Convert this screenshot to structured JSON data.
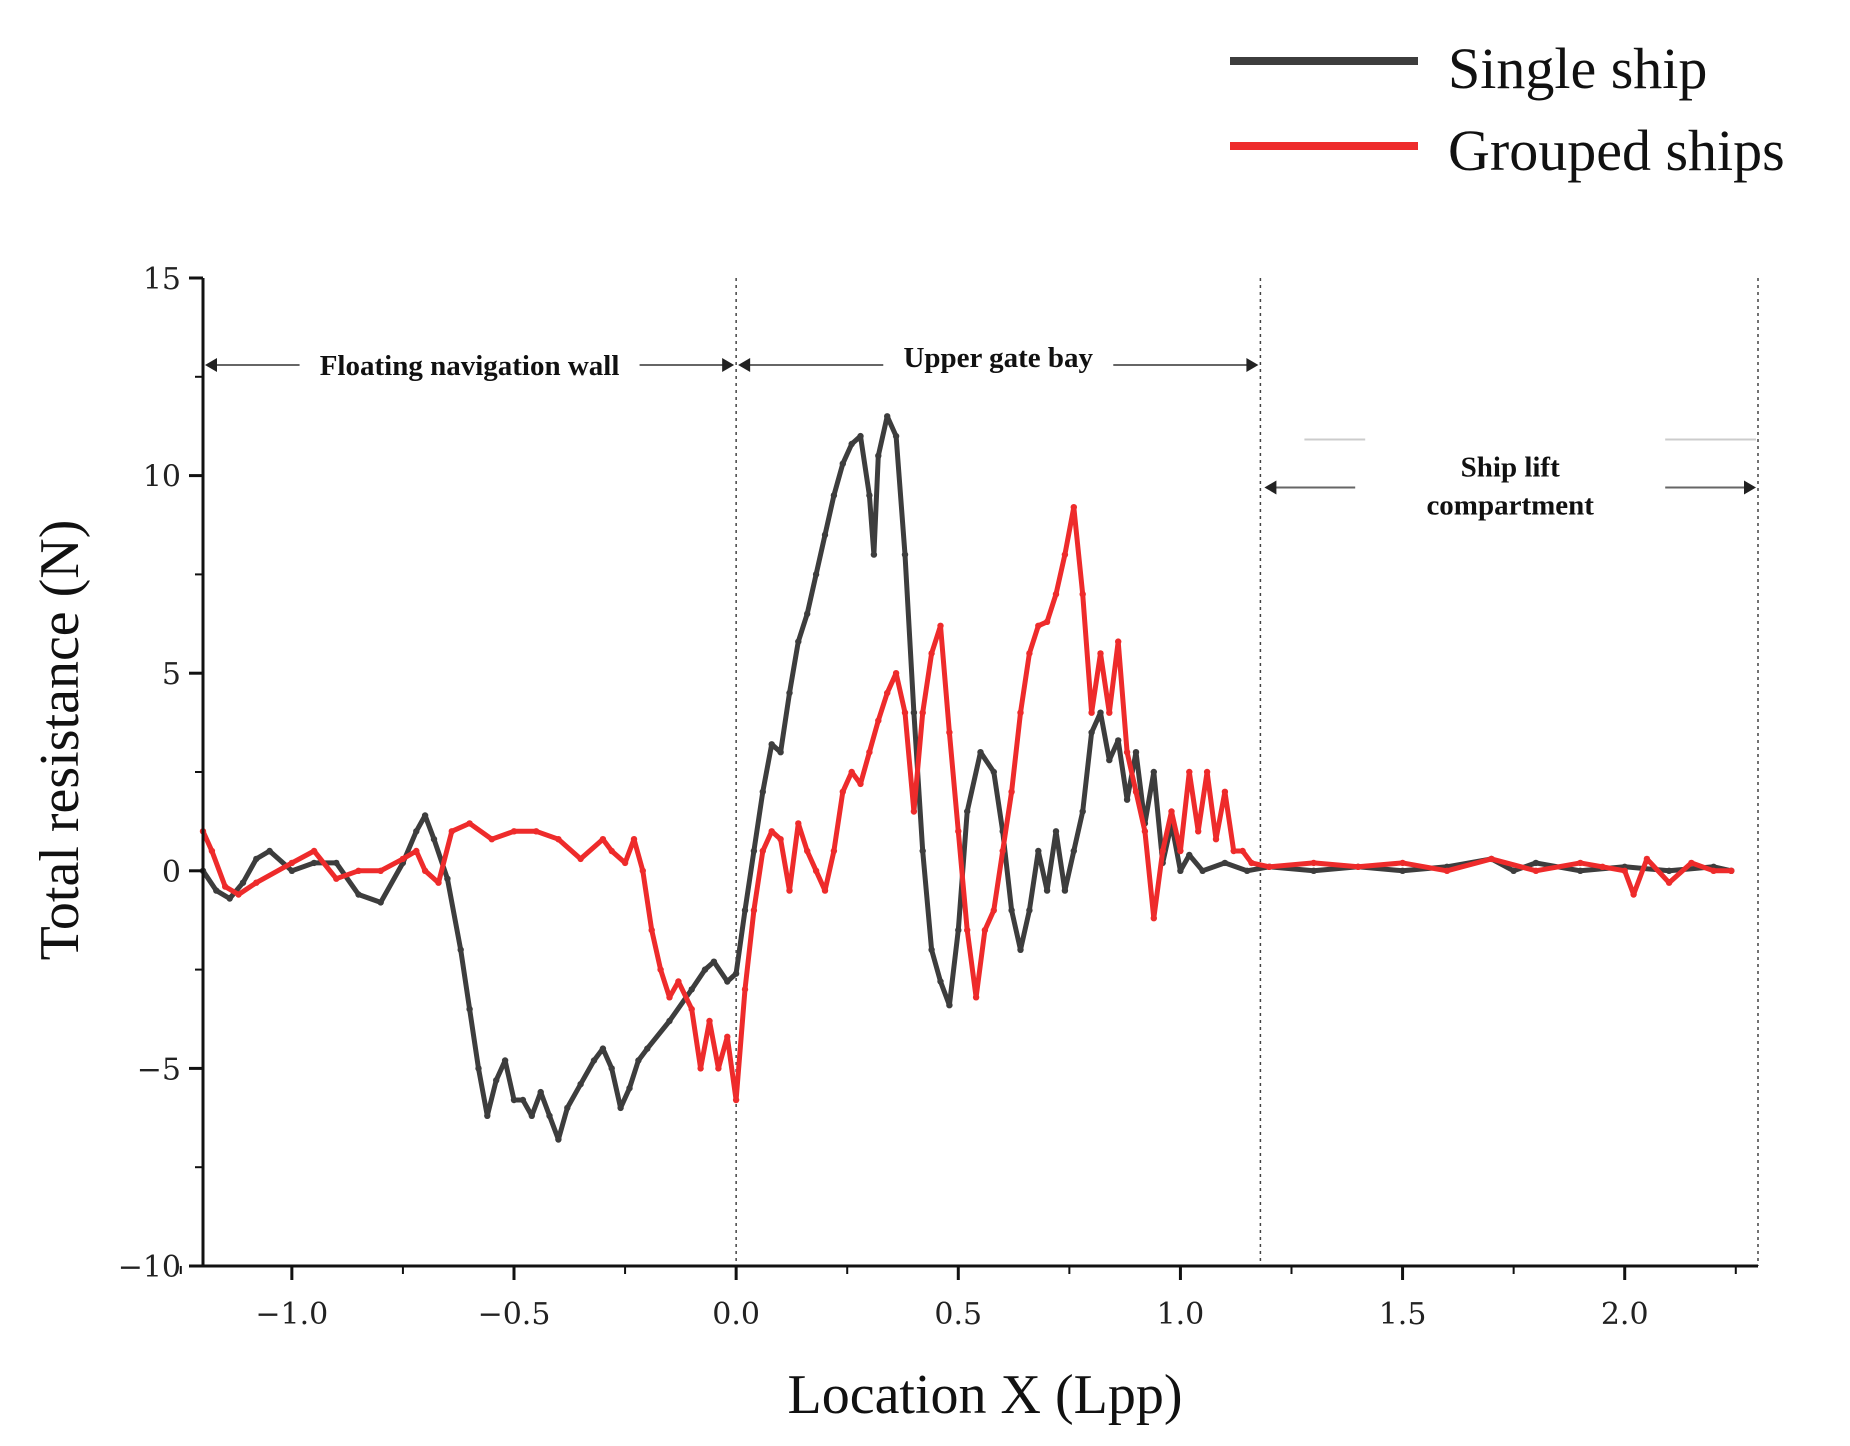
{
  "chart_data": {
    "type": "line",
    "title": "",
    "xlabel": "Location X (Lpp)",
    "ylabel": "Total resistance (N)",
    "xlim": [
      -1.2,
      2.3
    ],
    "ylim": [
      -10,
      15
    ],
    "xticks": [
      -1.0,
      -0.5,
      0.0,
      0.5,
      1.0,
      1.5,
      2.0
    ],
    "xtick_labels": [
      "−1.0",
      "−0.5",
      "0.0",
      "0.5",
      "1.0",
      "1.5",
      "2.0"
    ],
    "yticks": [
      -10,
      -5,
      0,
      5,
      10,
      15
    ],
    "ytick_labels": [
      "−10",
      "−5",
      "0",
      "5",
      "10",
      "15"
    ],
    "legend_position": "top-right",
    "region_boundaries": [
      0.0,
      1.18,
      2.3
    ],
    "regions": [
      {
        "label": "Floating navigation wall",
        "x_start": -1.2,
        "x_end": 0.0,
        "y": 12.8
      },
      {
        "label": "Upper gate bay",
        "x_start": 0.0,
        "x_end": 1.18,
        "y": 12.8
      },
      {
        "label_lines": [
          "Ship lift",
          "compartment"
        ],
        "x_start": 1.18,
        "x_end": 2.3,
        "y": 9.7
      }
    ],
    "series": [
      {
        "name": "Single ship",
        "color": "#3d3d3d",
        "x": [
          -1.2,
          -1.17,
          -1.14,
          -1.11,
          -1.08,
          -1.05,
          -1.0,
          -0.95,
          -0.9,
          -0.85,
          -0.8,
          -0.75,
          -0.72,
          -0.7,
          -0.68,
          -0.65,
          -0.62,
          -0.6,
          -0.58,
          -0.56,
          -0.54,
          -0.52,
          -0.5,
          -0.48,
          -0.46,
          -0.44,
          -0.42,
          -0.4,
          -0.38,
          -0.35,
          -0.32,
          -0.3,
          -0.28,
          -0.26,
          -0.24,
          -0.22,
          -0.2,
          -0.15,
          -0.1,
          -0.07,
          -0.05,
          -0.02,
          0.0,
          0.02,
          0.04,
          0.06,
          0.08,
          0.1,
          0.12,
          0.14,
          0.16,
          0.18,
          0.2,
          0.22,
          0.24,
          0.26,
          0.28,
          0.3,
          0.31,
          0.32,
          0.34,
          0.36,
          0.38,
          0.4,
          0.42,
          0.44,
          0.46,
          0.48,
          0.5,
          0.52,
          0.55,
          0.58,
          0.6,
          0.62,
          0.64,
          0.66,
          0.68,
          0.7,
          0.72,
          0.74,
          0.76,
          0.78,
          0.8,
          0.82,
          0.84,
          0.86,
          0.88,
          0.9,
          0.92,
          0.94,
          0.96,
          0.98,
          1.0,
          1.02,
          1.05,
          1.1,
          1.15,
          1.2,
          1.3,
          1.4,
          1.5,
          1.6,
          1.7,
          1.75,
          1.8,
          1.9,
          2.0,
          2.1,
          2.2,
          2.24
        ],
        "y": [
          0.0,
          -0.5,
          -0.7,
          -0.3,
          0.3,
          0.5,
          0.0,
          0.2,
          0.2,
          -0.6,
          -0.8,
          0.2,
          1.0,
          1.4,
          0.8,
          -0.2,
          -2.0,
          -3.5,
          -5.0,
          -6.2,
          -5.3,
          -4.8,
          -5.8,
          -5.8,
          -6.2,
          -5.6,
          -6.2,
          -6.8,
          -6.0,
          -5.4,
          -4.8,
          -4.5,
          -5.0,
          -6.0,
          -5.5,
          -4.8,
          -4.5,
          -3.8,
          -3.0,
          -2.5,
          -2.3,
          -2.8,
          -2.6,
          -1.0,
          0.5,
          2.0,
          3.2,
          3.0,
          4.5,
          5.8,
          6.5,
          7.5,
          8.5,
          9.5,
          10.3,
          10.8,
          11.0,
          9.5,
          8.0,
          10.5,
          11.5,
          11.0,
          8.0,
          4.0,
          0.5,
          -2.0,
          -2.8,
          -3.4,
          -1.5,
          1.5,
          3.0,
          2.5,
          1.0,
          -1.0,
          -2.0,
          -1.0,
          0.5,
          -0.5,
          1.0,
          -0.5,
          0.5,
          1.5,
          3.5,
          4.0,
          2.8,
          3.3,
          1.8,
          3.0,
          1.2,
          2.5,
          0.2,
          1.2,
          0.0,
          0.4,
          0.0,
          0.2,
          0.0,
          0.1,
          0.0,
          0.1,
          0.0,
          0.1,
          0.3,
          0.0,
          0.2,
          0.0,
          0.1,
          0.0,
          0.1,
          0.0
        ]
      },
      {
        "name": "Grouped ships",
        "color": "#ee2b2b",
        "x": [
          -1.2,
          -1.18,
          -1.15,
          -1.12,
          -1.08,
          -1.0,
          -0.95,
          -0.9,
          -0.85,
          -0.8,
          -0.75,
          -0.72,
          -0.7,
          -0.67,
          -0.64,
          -0.6,
          -0.55,
          -0.5,
          -0.45,
          -0.4,
          -0.35,
          -0.3,
          -0.28,
          -0.25,
          -0.23,
          -0.21,
          -0.19,
          -0.17,
          -0.15,
          -0.13,
          -0.1,
          -0.08,
          -0.06,
          -0.04,
          -0.02,
          0.0,
          0.02,
          0.04,
          0.06,
          0.08,
          0.1,
          0.12,
          0.14,
          0.16,
          0.18,
          0.2,
          0.22,
          0.24,
          0.26,
          0.28,
          0.3,
          0.32,
          0.34,
          0.36,
          0.38,
          0.4,
          0.42,
          0.44,
          0.46,
          0.48,
          0.5,
          0.52,
          0.54,
          0.56,
          0.58,
          0.6,
          0.62,
          0.64,
          0.66,
          0.68,
          0.7,
          0.72,
          0.74,
          0.76,
          0.78,
          0.8,
          0.82,
          0.84,
          0.86,
          0.88,
          0.9,
          0.92,
          0.94,
          0.96,
          0.98,
          1.0,
          1.02,
          1.04,
          1.06,
          1.08,
          1.1,
          1.12,
          1.14,
          1.16,
          1.2,
          1.3,
          1.4,
          1.5,
          1.6,
          1.7,
          1.8,
          1.9,
          1.95,
          2.0,
          2.02,
          2.05,
          2.1,
          2.15,
          2.2,
          2.24
        ],
        "y": [
          1.0,
          0.5,
          -0.4,
          -0.6,
          -0.3,
          0.2,
          0.5,
          -0.2,
          0.0,
          0.0,
          0.3,
          0.5,
          0.0,
          -0.3,
          1.0,
          1.2,
          0.8,
          1.0,
          1.0,
          0.8,
          0.3,
          0.8,
          0.5,
          0.2,
          0.8,
          0.0,
          -1.5,
          -2.5,
          -3.2,
          -2.8,
          -3.5,
          -5.0,
          -3.8,
          -5.0,
          -4.2,
          -5.8,
          -3.0,
          -1.0,
          0.5,
          1.0,
          0.8,
          -0.5,
          1.2,
          0.5,
          0.0,
          -0.5,
          0.5,
          2.0,
          2.5,
          2.2,
          3.0,
          3.8,
          4.5,
          5.0,
          4.0,
          1.5,
          4.0,
          5.5,
          6.2,
          3.5,
          1.0,
          -1.5,
          -3.2,
          -1.5,
          -1.0,
          0.5,
          2.0,
          4.0,
          5.5,
          6.2,
          6.3,
          7.0,
          8.0,
          9.2,
          7.0,
          4.0,
          5.5,
          4.0,
          5.8,
          3.0,
          2.0,
          1.0,
          -1.2,
          0.5,
          1.5,
          0.5,
          2.5,
          1.0,
          2.5,
          0.8,
          2.0,
          0.5,
          0.5,
          0.2,
          0.1,
          0.2,
          0.1,
          0.2,
          0.0,
          0.3,
          0.0,
          0.2,
          0.1,
          0.0,
          -0.6,
          0.3,
          -0.3,
          0.2,
          0.0,
          0.0
        ]
      }
    ]
  }
}
